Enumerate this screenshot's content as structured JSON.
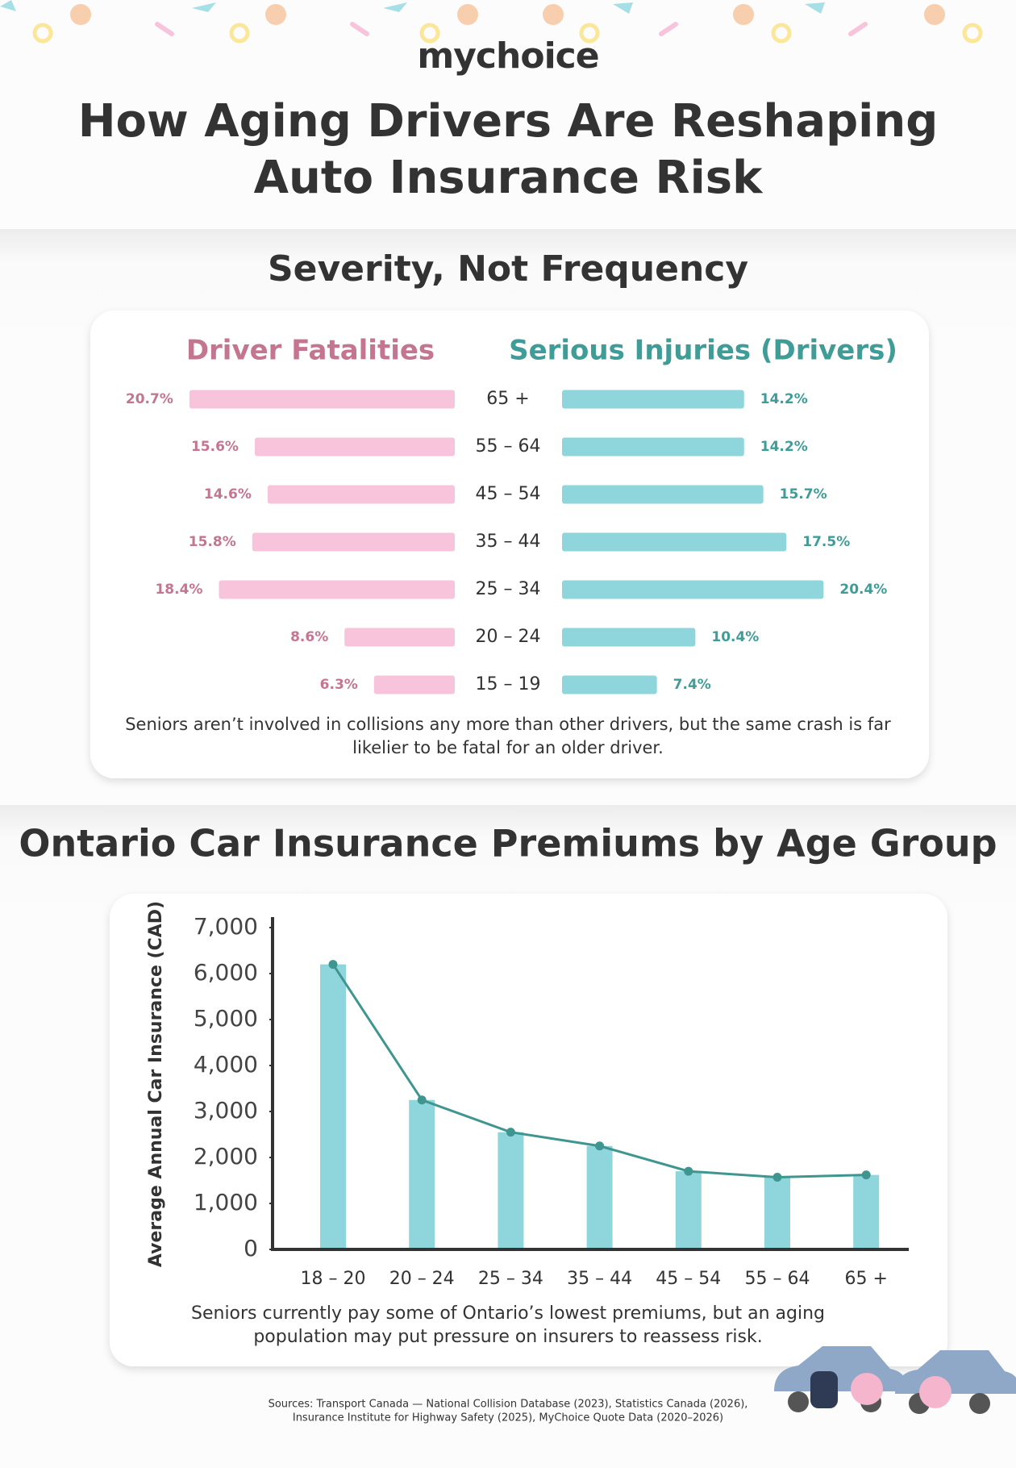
{
  "brand": "mychoice",
  "title": [
    "How Aging Drivers Are Reshaping",
    "Auto Insurance Risk"
  ],
  "sources": [
    "Sources: Transport Canada — National Collision Database (2023), Statistics Canada (2026),",
    "Insurance Institute for Highway Safety (2025), MyChoice Quote Data (2020–2026)"
  ],
  "chart_data": [
    {
      "type": "butterfly",
      "title": "Severity, Not Frequency",
      "categories": [
        "65 +",
        "55 – 64",
        "45 – 54",
        "35 – 44",
        "25 – 34",
        "20 – 24",
        "15 – 19"
      ],
      "series": [
        {
          "name": "Driver Fatalities",
          "color": "#f7c4db",
          "label_color": "#c4758f",
          "values": [
            20.7,
            15.6,
            14.6,
            15.8,
            18.4,
            8.6,
            6.3
          ],
          "value_labels": [
            "20.7%",
            "15.6%",
            "14.6%",
            "15.8%",
            "18.4%",
            "8.6%",
            "6.3%"
          ]
        },
        {
          "name": "Serious Injuries (Drivers)",
          "color": "#8fd5dc",
          "label_color": "#3f9c96",
          "values": [
            14.2,
            14.2,
            15.7,
            17.5,
            20.4,
            10.4,
            7.4
          ],
          "value_labels": [
            "14.2%",
            "14.2%",
            "15.7%",
            "17.5%",
            "20.4%",
            "10.4%",
            "7.4%"
          ]
        }
      ],
      "caption": [
        "Seniors aren’t involved in collisions any more than other drivers, but the same crash is far",
        "likelier to be fatal for an older driver."
      ]
    },
    {
      "type": "bar",
      "overlay": "line",
      "title": "Ontario Car Insurance Premiums by Age Group",
      "ylabel": "Average Annual Car Insurance (CAD)",
      "categories": [
        "18 – 20",
        "20 – 24",
        "25 – 34",
        "35 – 44",
        "45 – 54",
        "55 – 64",
        "65 +"
      ],
      "values": [
        6200,
        3250,
        2550,
        2250,
        1700,
        1570,
        1620
      ],
      "color": "#8fd5dc",
      "line_color": "#3f9690",
      "ylim": [
        0,
        7000
      ],
      "yticks": [
        0,
        {
          "value": 1000,
          "label": "1,000"
        },
        {
          "value": 2000,
          "label": "2,000"
        },
        {
          "value": 3000,
          "label": "3,000"
        },
        {
          "value": 4000,
          "label": "4,000"
        },
        {
          "value": 5000,
          "label": "5,000"
        },
        {
          "value": 6000,
          "label": "6,000"
        },
        {
          "value": 7000,
          "label": "7,000"
        }
      ],
      "caption": [
        "Seniors currently pay some of Ontario’s lowest premiums, but an aging",
        "population may put pressure on insurers to reassess risk."
      ]
    }
  ]
}
